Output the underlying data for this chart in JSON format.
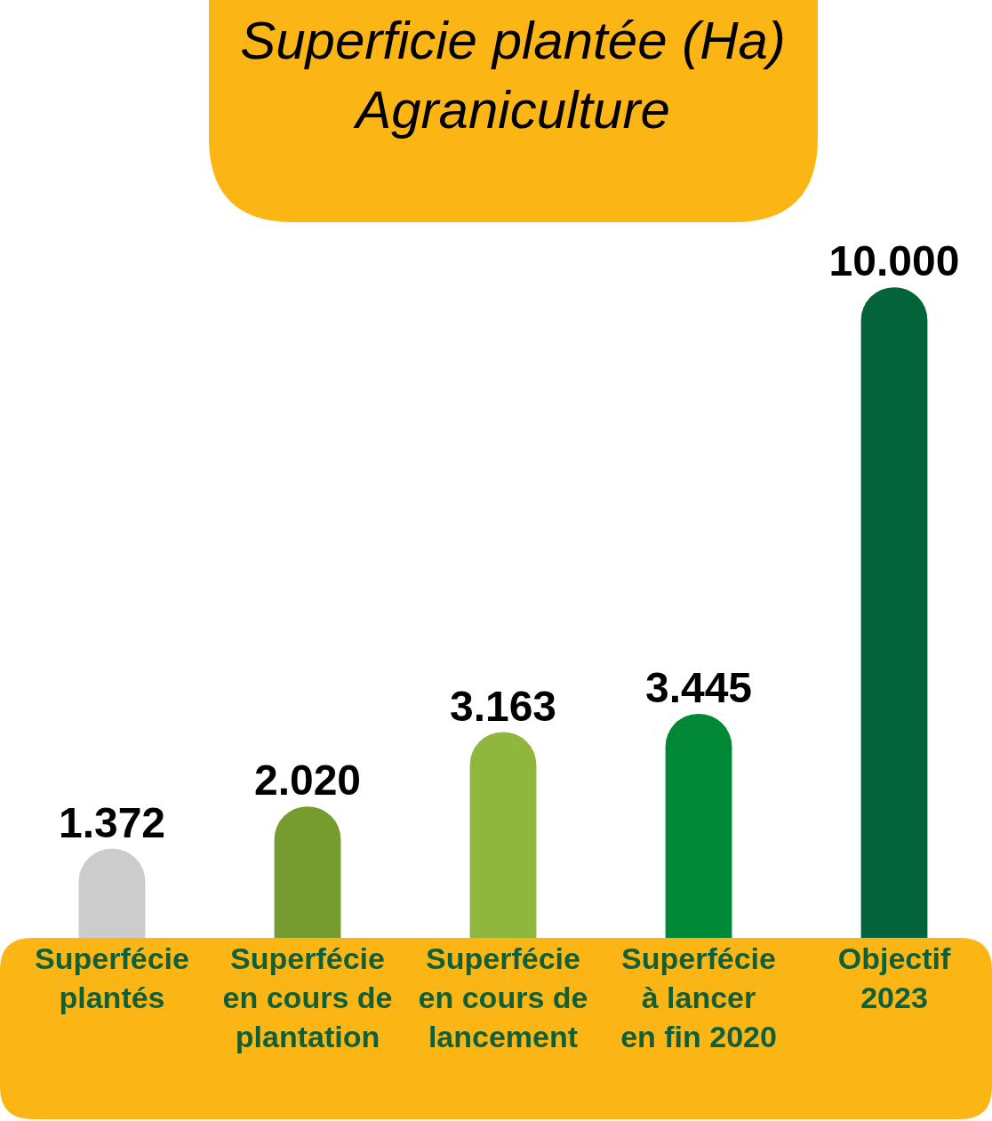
{
  "chart_data": {
    "type": "bar",
    "title": "Superficie plantée (Ha)\nAgraniculture",
    "categories": [
      "Superfécie\nplantés",
      "Superfécie\nen cours de\nplantation",
      "Superfécie\nen cours de\nlancement",
      "Superfécie\nà lancer\nen fin 2020",
      "Objectif\n2023"
    ],
    "values": [
      1372,
      2020,
      3163,
      3445,
      10000
    ],
    "colors": [
      "#cccccc",
      "#769c30",
      "#8fb73e",
      "#008837",
      "#03643c"
    ],
    "value_labels": [
      "1.372",
      "2.020",
      "3.163",
      "3.445",
      "10.000"
    ],
    "tick_labels": "x"
  }
}
